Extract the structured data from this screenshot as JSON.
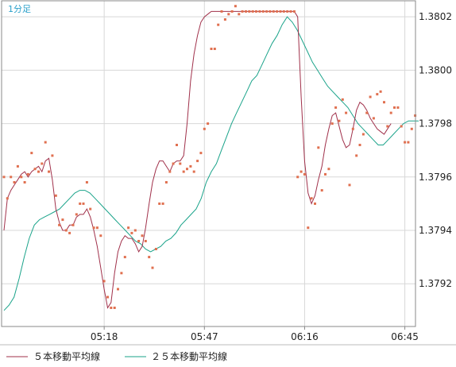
{
  "chart_data": {
    "type": "line",
    "title": "1分足",
    "xlabel": "",
    "ylabel": "",
    "ylim": [
      1.37904,
      1.38026
    ],
    "y_ticks": [
      "1.3792",
      "1.3794",
      "1.3796",
      "1.3798",
      "1.3800",
      "1.3802"
    ],
    "x_ticks": [
      {
        "label": "05:18",
        "index": 29
      },
      {
        "label": "05:47",
        "index": 58
      },
      {
        "label": "06:16",
        "index": 87
      },
      {
        "label": "06:45",
        "index": 116
      }
    ],
    "grid": true,
    "legend_position": "bottom-left",
    "colors": {
      "price": "#e07050",
      "ma5": "#a0304a",
      "ma25": "#1aa38a",
      "grid": "#d8d8d8",
      "title": "#2a9fc9"
    },
    "price_points": [
      1.3796,
      1.37952,
      1.3796,
      1.37958,
      1.37964,
      1.3796,
      1.37958,
      1.37961,
      1.37969,
      1.37963,
      1.37962,
      1.37965,
      1.37973,
      1.37962,
      1.37968,
      1.37953,
      1.37942,
      1.37944,
      1.3794,
      1.37939,
      1.37942,
      1.37946,
      1.3795,
      1.3795,
      1.37958,
      1.37948,
      1.37941,
      1.37941,
      1.37938,
      1.37921,
      1.37915,
      1.37911,
      1.37911,
      1.37918,
      1.37924,
      1.3793,
      1.37941,
      1.37939,
      1.3794,
      1.37936,
      1.37938,
      1.37936,
      1.3793,
      1.37926,
      1.37933,
      1.3795,
      1.3795,
      1.37958,
      1.37962,
      1.37965,
      1.37972,
      1.37965,
      1.37962,
      1.37963,
      1.37964,
      1.37962,
      1.37966,
      1.37969,
      1.37978,
      1.3798,
      1.38008,
      1.38008,
      1.38017,
      1.38022,
      1.38019,
      1.38021,
      1.38022,
      1.38024,
      1.38021,
      1.38022,
      1.38022,
      1.38022,
      1.38022,
      1.38022,
      1.38022,
      1.38022,
      1.38022,
      1.38022,
      1.38022,
      1.38022,
      1.38022,
      1.38022,
      1.38022,
      1.38022,
      1.38022,
      1.3796,
      1.37962,
      1.37961,
      1.37941,
      1.37952,
      1.3795,
      1.37971,
      1.37955,
      1.37961,
      1.37963,
      1.3798,
      1.37986,
      1.37981,
      1.37989,
      1.37984,
      1.37957,
      1.37978,
      1.37968,
      1.37972,
      1.37976,
      1.37984,
      1.3799,
      1.37982,
      1.37991,
      1.37992,
      1.37988,
      1.37979,
      1.37984,
      1.37986,
      1.37986,
      1.37979,
      1.37973,
      1.37973,
      1.37978,
      1.37983,
      1.37981
    ],
    "series": [
      {
        "name": "５本移動平均線",
        "values": [
          1.3794,
          1.37952,
          1.37955,
          1.37957,
          1.37959,
          1.37961,
          1.37962,
          1.3796,
          1.37962,
          1.37963,
          1.37964,
          1.37962,
          1.37966,
          1.37967,
          1.37959,
          1.37948,
          1.37943,
          1.3794,
          1.3794,
          1.37942,
          1.37942,
          1.37945,
          1.37946,
          1.37946,
          1.37948,
          1.37945,
          1.3794,
          1.37934,
          1.37926,
          1.37918,
          1.37911,
          1.37913,
          1.37924,
          1.37932,
          1.37936,
          1.37938,
          1.37937,
          1.37937,
          1.37935,
          1.37932,
          1.37934,
          1.37941,
          1.3795,
          1.37958,
          1.37963,
          1.37966,
          1.37966,
          1.37964,
          1.37962,
          1.37965,
          1.37966,
          1.37966,
          1.37968,
          1.3798,
          1.37996,
          1.38006,
          1.38013,
          1.38018,
          1.3802,
          1.38021,
          1.38022,
          1.38022,
          1.38022,
          1.38022,
          1.38022,
          1.38022,
          1.38022,
          1.38022,
          1.38022,
          1.38022,
          1.38022,
          1.38022,
          1.38022,
          1.38022,
          1.38022,
          1.38022,
          1.38022,
          1.38022,
          1.38022,
          1.38022,
          1.38022,
          1.38022,
          1.38022,
          1.38022,
          1.38022,
          1.3802,
          1.3799,
          1.37966,
          1.37954,
          1.3795,
          1.37953,
          1.37959,
          1.37964,
          1.37972,
          1.37978,
          1.37983,
          1.37984,
          1.37979,
          1.37974,
          1.37971,
          1.37972,
          1.37978,
          1.37985,
          1.37988,
          1.37987,
          1.37985,
          1.37982,
          1.3798,
          1.37978,
          1.37977,
          1.37976,
          1.37978,
          1.3798
        ]
      },
      {
        "name": "２５本移動平均線",
        "values": [
          1.3791,
          1.37912,
          1.37915,
          1.37922,
          1.3793,
          1.37937,
          1.37942,
          1.37944,
          1.37945,
          1.37946,
          1.37947,
          1.37948,
          1.3795,
          1.37952,
          1.37954,
          1.37955,
          1.37955,
          1.37954,
          1.37952,
          1.3795,
          1.37948,
          1.37946,
          1.37944,
          1.37942,
          1.3794,
          1.37938,
          1.37936,
          1.37935,
          1.37933,
          1.37932,
          1.37933,
          1.37934,
          1.37936,
          1.37937,
          1.37939,
          1.37942,
          1.37944,
          1.37946,
          1.37948,
          1.37952,
          1.37958,
          1.37962,
          1.37965,
          1.3797,
          1.37975,
          1.3798,
          1.37984,
          1.37988,
          1.37992,
          1.37996,
          1.37998,
          1.38002,
          1.38006,
          1.3801,
          1.38013,
          1.38017,
          1.3802,
          1.38018,
          1.38015,
          1.38011,
          1.38007,
          1.38003,
          1.38,
          1.37997,
          1.37994,
          1.37992,
          1.3799,
          1.37988,
          1.37986,
          1.37983,
          1.3798,
          1.37978,
          1.37976,
          1.37974,
          1.37972,
          1.37972,
          1.37974,
          1.37976,
          1.37978,
          1.3798,
          1.37981,
          1.37981,
          1.37981
        ]
      }
    ]
  }
}
